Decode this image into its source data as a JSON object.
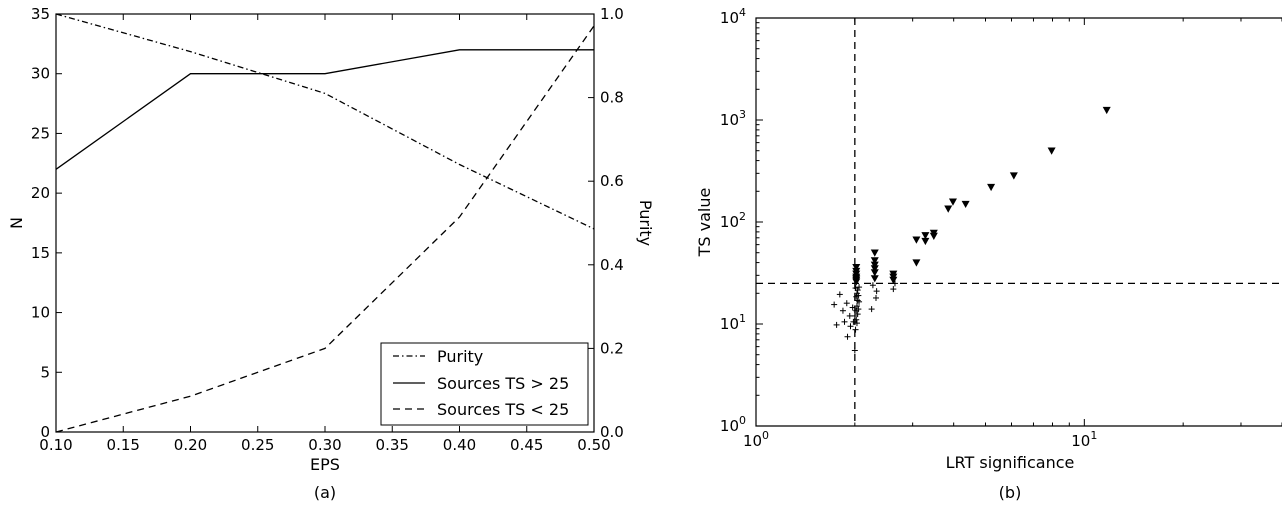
{
  "chart_data": [
    {
      "id": "a",
      "type": "line",
      "panel_label": "(a)",
      "xlabel": "EPS",
      "ylabel": "N",
      "y2label": "Purity",
      "xlim": [
        0.1,
        0.5
      ],
      "ylim": [
        0,
        35
      ],
      "y2lim": [
        0.0,
        1.0
      ],
      "xticks": [
        "0.10",
        "0.15",
        "0.20",
        "0.25",
        "0.30",
        "0.35",
        "0.40",
        "0.45",
        "0.50"
      ],
      "yticks": [
        "0",
        "5",
        "10",
        "15",
        "20",
        "25",
        "30",
        "35"
      ],
      "y2ticks": [
        "0.0",
        "0.2",
        "0.4",
        "0.6",
        "0.8",
        "1.0"
      ],
      "legend_position": "lower-right",
      "series": [
        {
          "name": "Purity",
          "style": "dashdot",
          "axis": "right",
          "x": [
            0.1,
            0.2,
            0.3,
            0.4,
            0.5
          ],
          "y": [
            1.0,
            0.91,
            0.81,
            0.64,
            0.486
          ]
        },
        {
          "name": "Sources TS > 25",
          "style": "solid",
          "axis": "left",
          "x": [
            0.1,
            0.2,
            0.3,
            0.4,
            0.5
          ],
          "y": [
            22,
            30,
            30,
            32,
            32
          ]
        },
        {
          "name": "Sources TS < 25",
          "style": "dashed",
          "axis": "left",
          "x": [
            0.1,
            0.2,
            0.3,
            0.4,
            0.5
          ],
          "y": [
            0,
            3,
            7,
            18,
            34
          ]
        }
      ]
    },
    {
      "id": "b",
      "type": "scatter",
      "panel_label": "(b)",
      "xlabel": "LRT significance",
      "ylabel": "TS value",
      "xscale": "log",
      "yscale": "log",
      "xlim": [
        1,
        40
      ],
      "ylim": [
        1,
        10000
      ],
      "xticks": [
        {
          "base": "10",
          "exp": "0"
        },
        {
          "base": "10",
          "exp": "1"
        }
      ],
      "yticks": [
        {
          "base": "10",
          "exp": "0"
        },
        {
          "base": "10",
          "exp": "1"
        },
        {
          "base": "10",
          "exp": "2"
        },
        {
          "base": "10",
          "exp": "3"
        },
        {
          "base": "10",
          "exp": "4"
        }
      ],
      "vline_x": 2.0,
      "hline_y": 25,
      "series": [
        {
          "marker": "triangle-down",
          "x": [
            2.02,
            2.02,
            2.02,
            2.02,
            2.02,
            2.02,
            2.02,
            2.3,
            2.3,
            2.3,
            2.3,
            2.3,
            2.3,
            2.62,
            2.62,
            2.62,
            3.08,
            3.08,
            3.28,
            3.28,
            3.48,
            3.48,
            3.85,
            3.98,
            4.35,
            5.2,
            6.1,
            7.95,
            11.7
          ],
          "y": [
            36,
            33,
            31,
            29,
            28,
            27,
            26,
            50,
            42,
            38,
            35,
            32,
            28,
            31,
            29,
            27,
            67,
            40,
            74,
            65,
            78,
            73,
            135,
            158,
            150,
            220,
            285,
            500,
            1250
          ]
        },
        {
          "marker": "plus",
          "x": [
            1.73,
            1.76,
            1.8,
            1.84,
            1.86,
            1.89,
            1.9,
            1.93,
            1.94,
            1.97,
            1.98,
            2.0,
            2.0,
            2.01,
            2.01,
            2.02,
            2.02,
            2.02,
            2.03,
            2.03,
            2.03,
            2.04,
            2.04,
            2.04,
            2.05,
            2.05,
            2.06,
            2.06,
            2.25,
            2.27,
            2.32,
            2.33,
            2.62,
            2.65
          ],
          "y": [
            15.5,
            9.8,
            19.5,
            13.5,
            10.5,
            16,
            7.5,
            12,
            9.5,
            14.5,
            10.5,
            5.5,
            12,
            8.8,
            22.5,
            11,
            13.5,
            18.5,
            10.2,
            15,
            20,
            12.5,
            17,
            21.5,
            14,
            19,
            16.5,
            23,
            14,
            24,
            18,
            21,
            22,
            25
          ]
        }
      ]
    }
  ]
}
